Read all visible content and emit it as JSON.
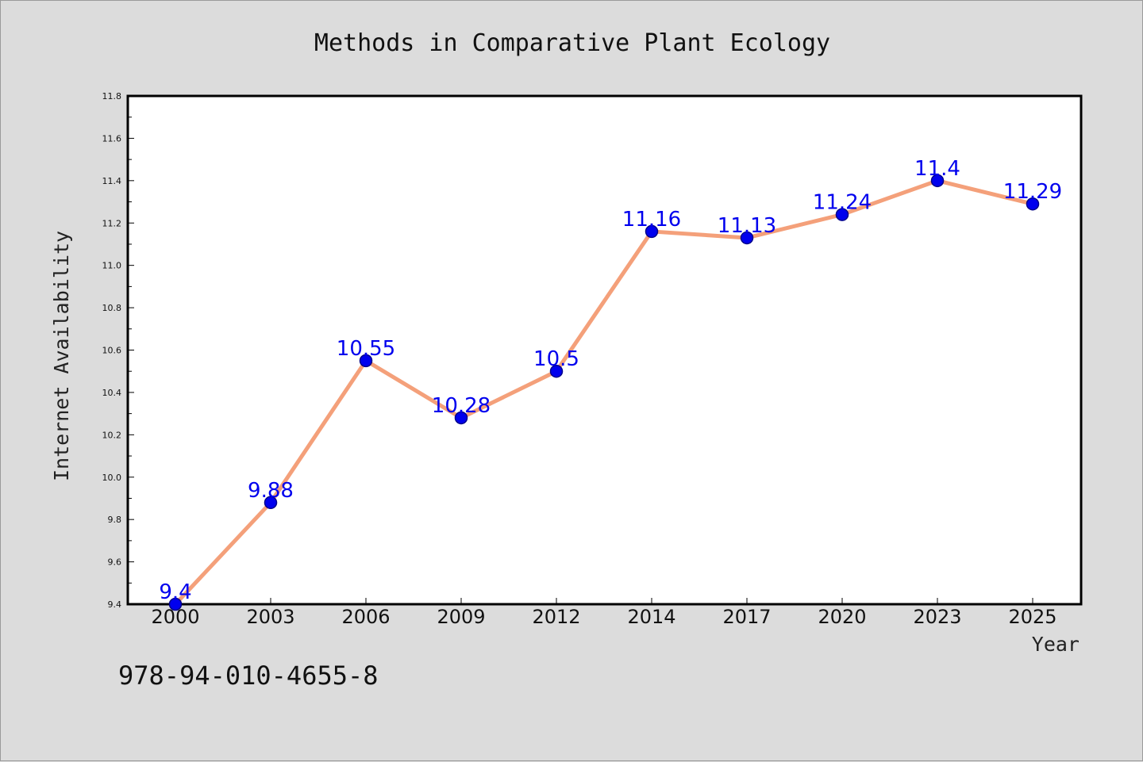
{
  "footer": {
    "code": "978-94-010-4655-8"
  },
  "colors": {
    "line": "#f4a07a",
    "marker": "#0000ee",
    "marker_edge": "#00008b",
    "data_label": "#0000ee",
    "plot_bg": "#ffffff",
    "page_bg": "#dcdcdc"
  },
  "chart_data": {
    "type": "line",
    "title": "Methods in Comparative Plant Ecology",
    "xlabel": "Year",
    "ylabel": "Internet Availability",
    "categories": [
      "2000",
      "2003",
      "2006",
      "2009",
      "2012",
      "2014",
      "2017",
      "2020",
      "2023",
      "2025"
    ],
    "series": [
      {
        "values": [
          9.4,
          9.88,
          10.55,
          10.28,
          10.5,
          11.16,
          11.13,
          11.24,
          11.4,
          11.29
        ]
      }
    ],
    "data_labels": [
      "9.4",
      "9.88",
      "10.55",
      "10.28",
      "10.5",
      "11.16",
      "11.13",
      "11.24",
      "11.4",
      "11.29"
    ],
    "ylim": [
      9.4,
      11.8
    ],
    "yticks": [
      "9.4",
      "9.6",
      "9.8",
      "10.0",
      "10.2",
      "10.4",
      "10.6",
      "10.8",
      "11.0",
      "11.2",
      "11.4",
      "11.6",
      "11.8"
    ],
    "grid": false,
    "legend": "none"
  }
}
